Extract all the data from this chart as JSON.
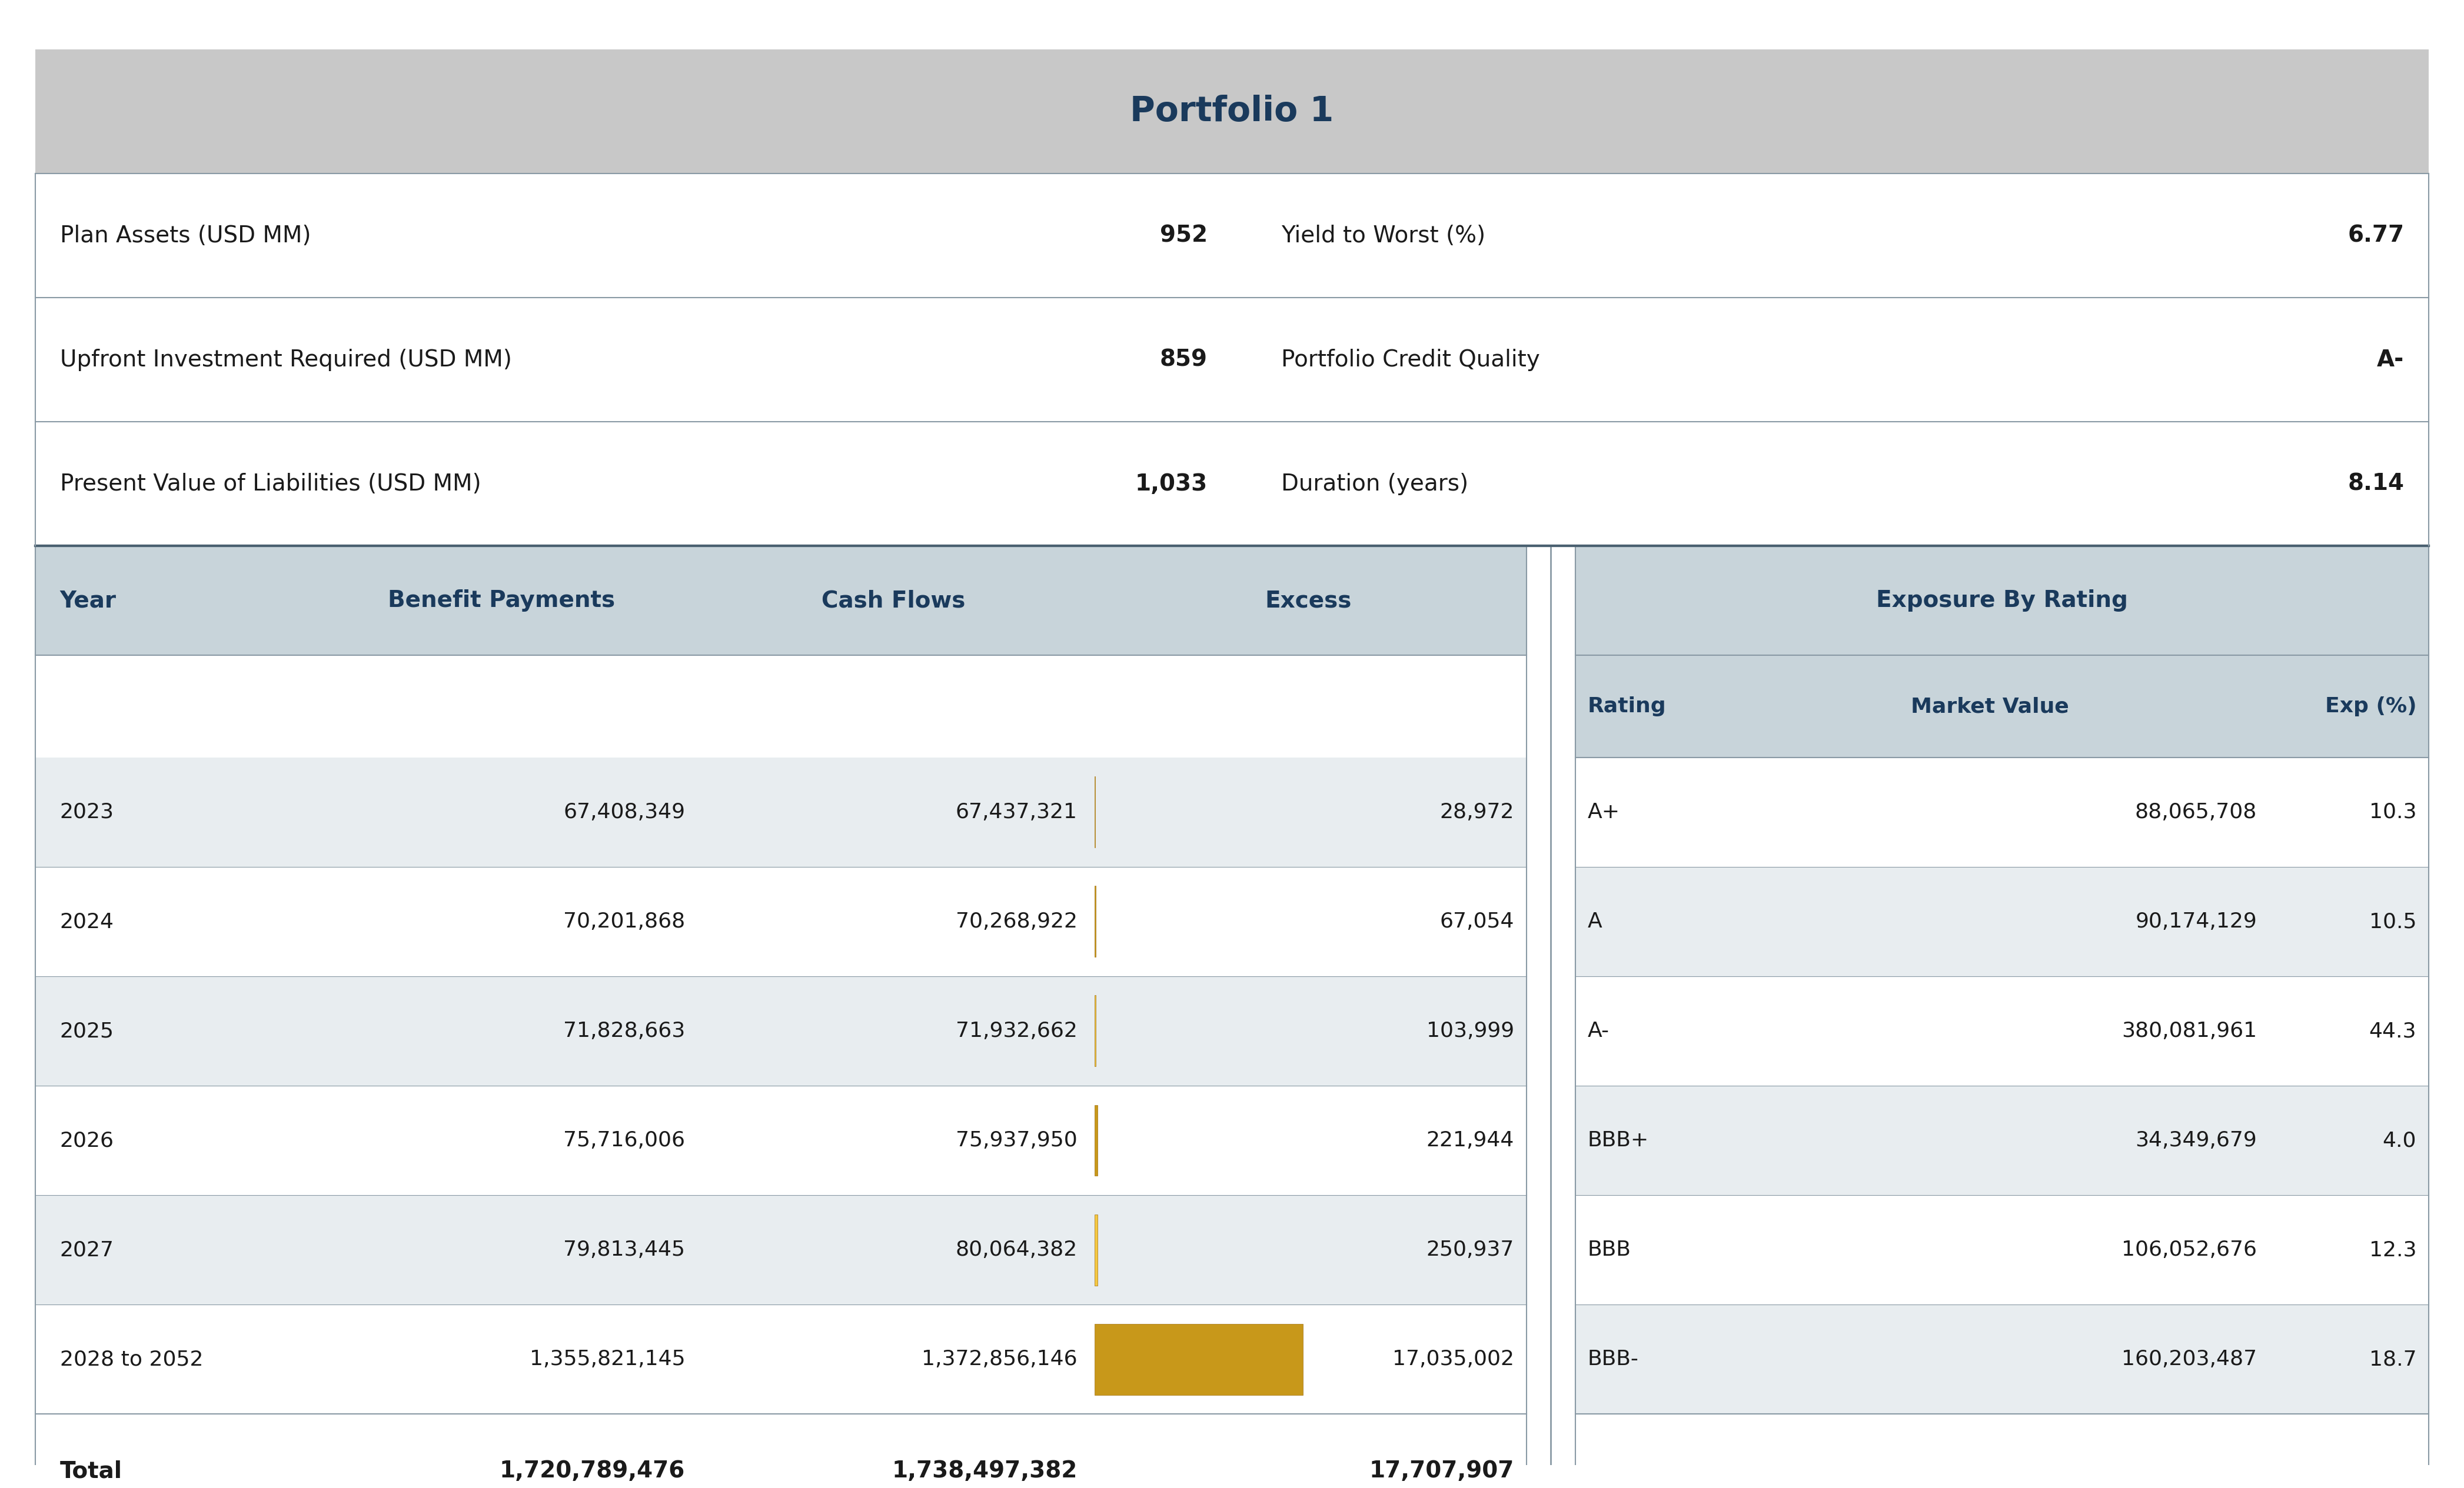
{
  "title": "Portfolio 1",
  "title_color": "#1a3a5c",
  "title_bg_color": "#c8c8c8",
  "header_bg_color": "#b0bec5",
  "summary_rows": [
    {
      "label": "Plan Assets (USD MM)",
      "value": "952",
      "label2": "Yield to Worst (%)",
      "value2": "6.77"
    },
    {
      "label": "Upfront Investment Required (USD MM)",
      "value": "859",
      "label2": "Portfolio Credit Quality",
      "value2": "A-"
    },
    {
      "label": "Present Value of Liabilities (USD MM)",
      "value": "1,033",
      "label2": "Duration (years)",
      "value2": "8.14"
    }
  ],
  "main_header": [
    "Year",
    "Benefit Payments",
    "Cash Flows",
    "Excess"
  ],
  "exposure_header": "Exposure By Rating",
  "exposure_subheader": [
    "Rating",
    "Market Value",
    "Exp (%)"
  ],
  "main_data": [
    {
      "year": "2023",
      "benefit": "67,408,349",
      "cashflow": "67,437,321",
      "excess": "28,972",
      "excess_val": 28972
    },
    {
      "year": "2024",
      "benefit": "70,201,868",
      "cashflow": "70,268,922",
      "excess": "67,054",
      "excess_val": 67054
    },
    {
      "year": "2025",
      "benefit": "71,828,663",
      "cashflow": "71,932,662",
      "excess": "103,999",
      "excess_val": 103999
    },
    {
      "year": "2026",
      "benefit": "75,716,006",
      "cashflow": "75,937,950",
      "excess": "221,944",
      "excess_val": 221944
    },
    {
      "year": "2027",
      "benefit": "79,813,445",
      "cashflow": "80,064,382",
      "excess": "250,937",
      "excess_val": 250937
    },
    {
      "year": "2028 to 2052",
      "benefit": "1,355,821,145",
      "cashflow": "1,372,856,146",
      "excess": "17,035,002",
      "excess_val": 17035002
    }
  ],
  "total_row": {
    "year": "Total",
    "benefit": "1,720,789,476",
    "cashflow": "1,738,497,382",
    "excess": "17,707,907"
  },
  "exposure_data": [
    {
      "rating": "A+",
      "market_value": "88,065,708",
      "exp": "10.3"
    },
    {
      "rating": "A",
      "market_value": "90,174,129",
      "exp": "10.5"
    },
    {
      "rating": "A-",
      "market_value": "380,081,961",
      "exp": "44.3"
    },
    {
      "rating": "BBB+",
      "market_value": "34,349,679",
      "exp": "4.0"
    },
    {
      "rating": "BBB",
      "market_value": "106,052,676",
      "exp": "12.3"
    },
    {
      "rating": "BBB-",
      "market_value": "160,203,487",
      "exp": "18.7"
    }
  ],
  "bar_color_light": "#f5c842",
  "bar_color_dark": "#c8981a",
  "row_alt_color": "#e8edf0",
  "row_white": "#ffffff",
  "header_text_color": "#1a3a5c",
  "divider_color": "#8a9aa5",
  "text_color_black": "#1a1a1a",
  "border_color": "#8a9aa5",
  "max_excess_val": 17035002
}
